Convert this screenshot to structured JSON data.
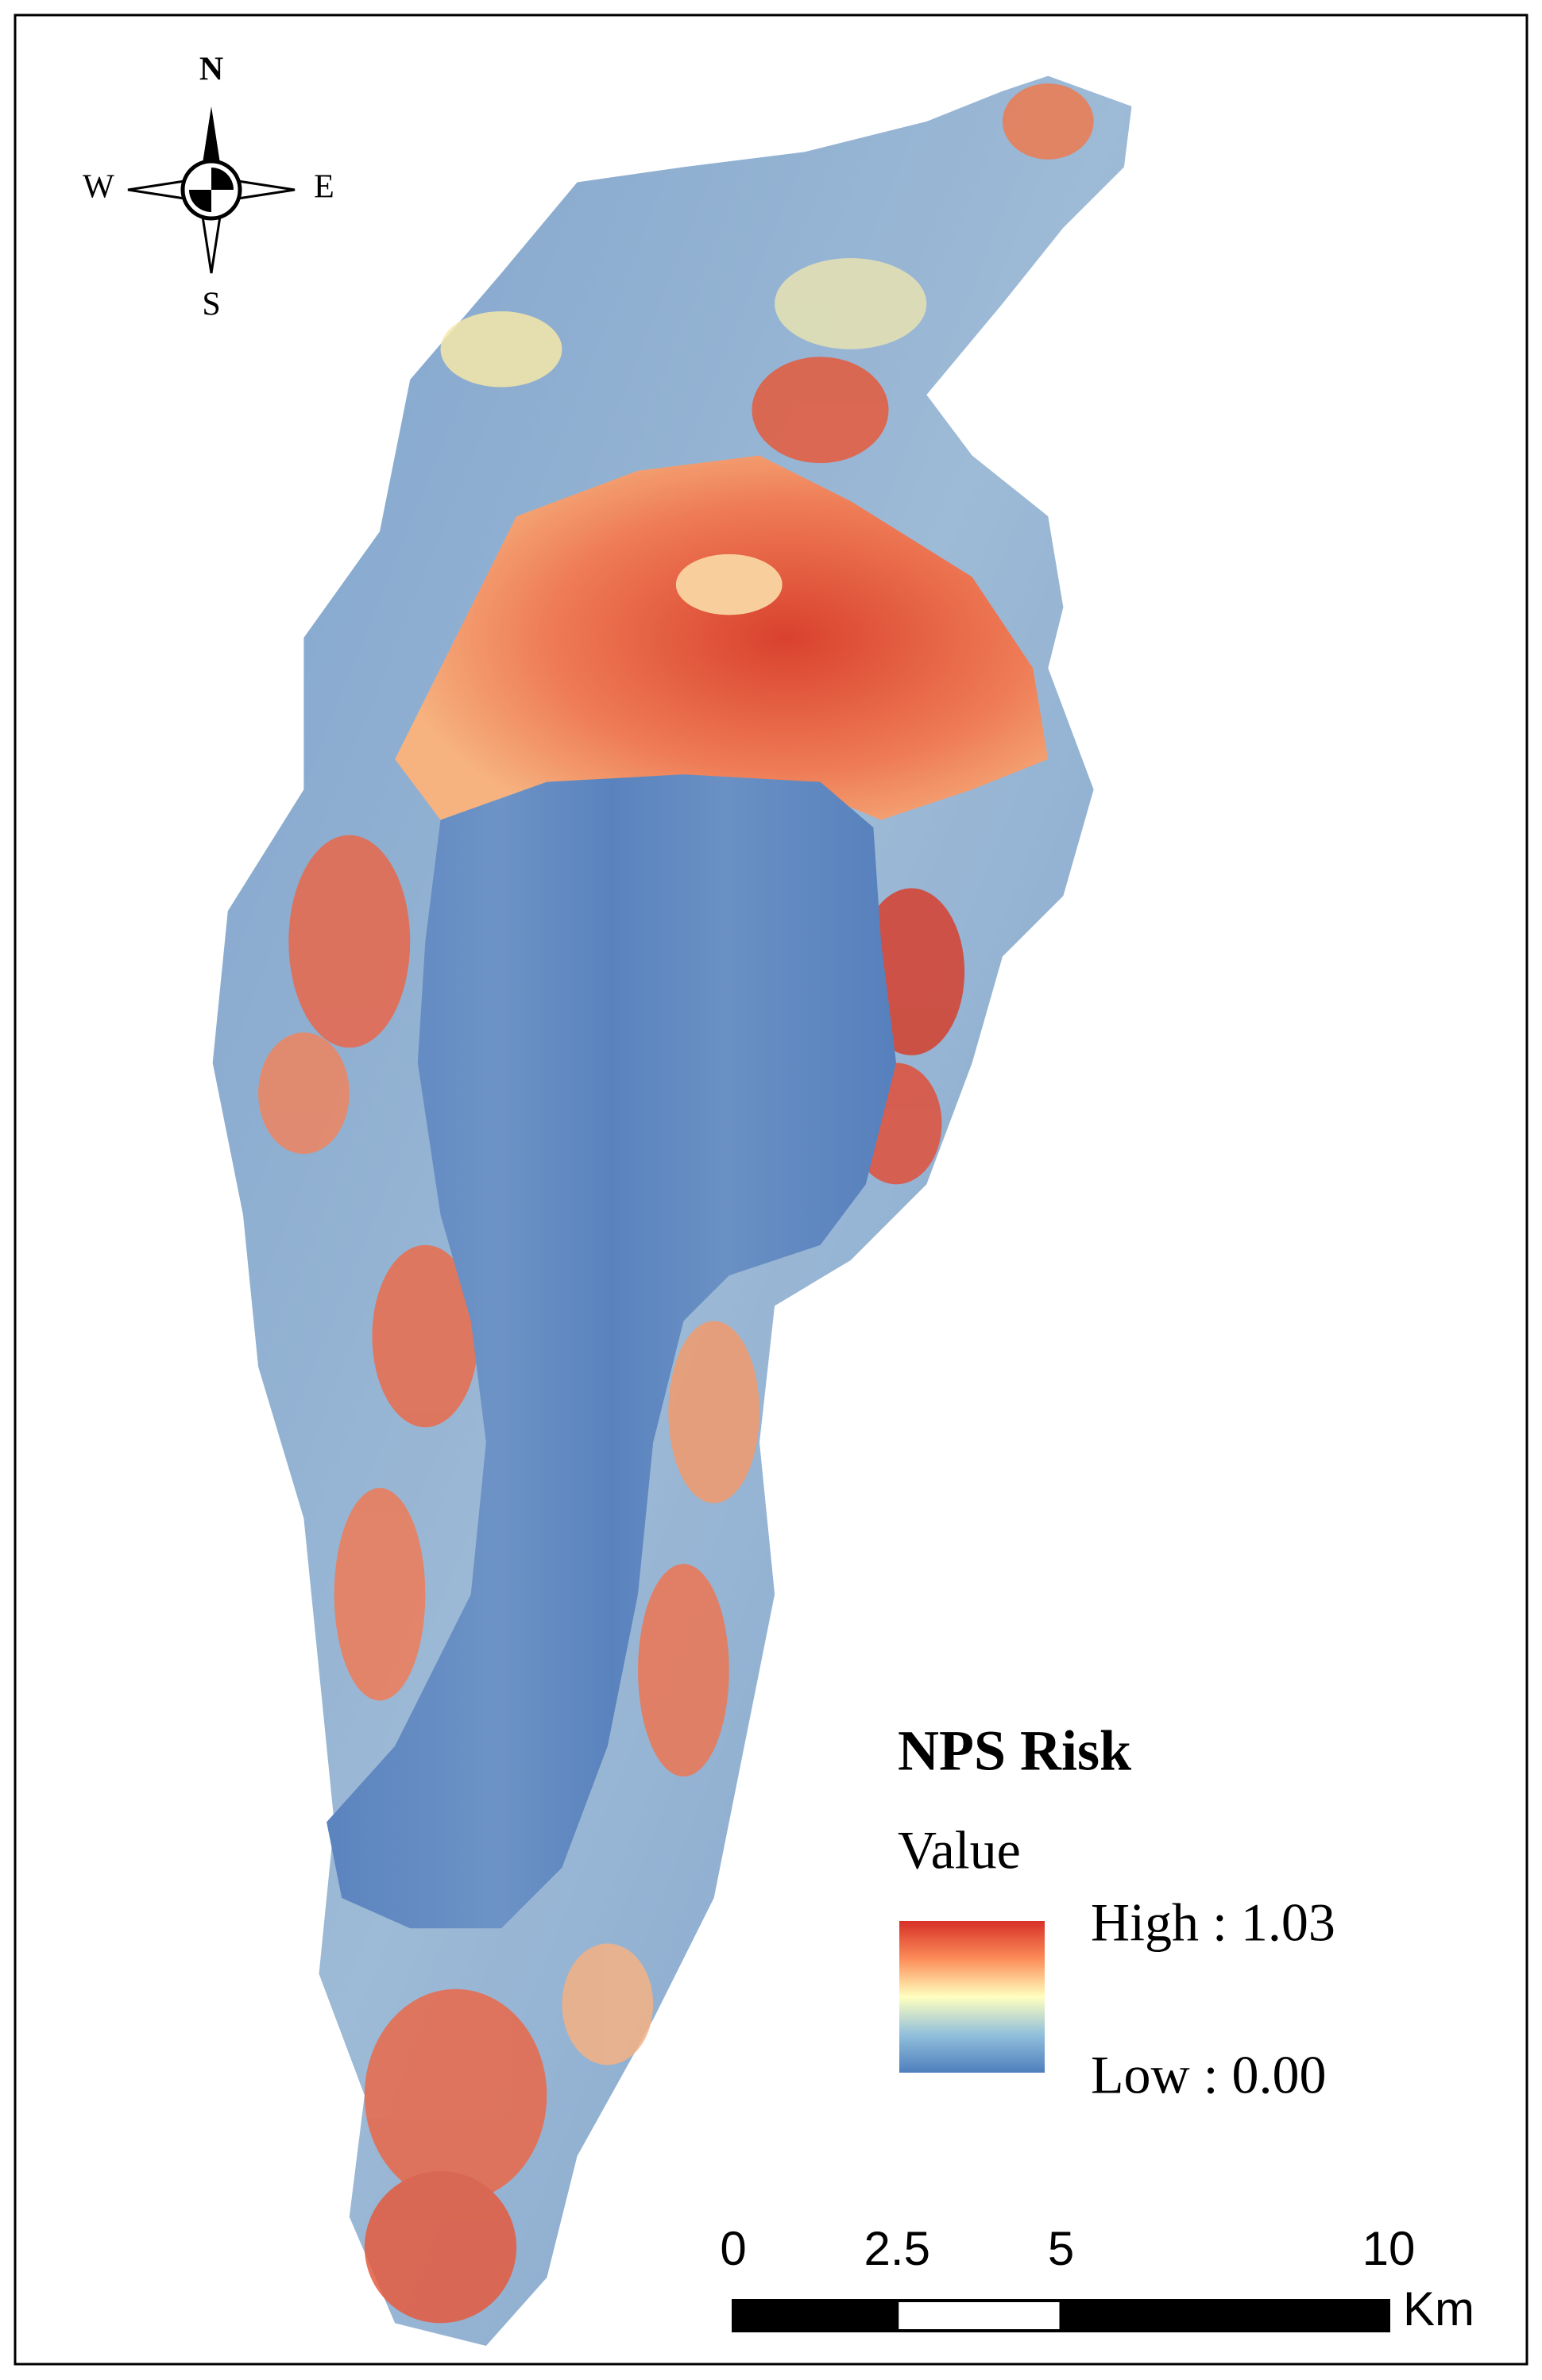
{
  "compass": {
    "north": "N",
    "south": "S",
    "west": "W",
    "east": "E"
  },
  "legend": {
    "title": "NPS Risk",
    "subtitle": "Value",
    "high": "High : 1.03",
    "low": "Low : 0.00"
  },
  "scale_bar": {
    "ticks": [
      0,
      2.5,
      5,
      10
    ],
    "unit": "Km"
  }
}
